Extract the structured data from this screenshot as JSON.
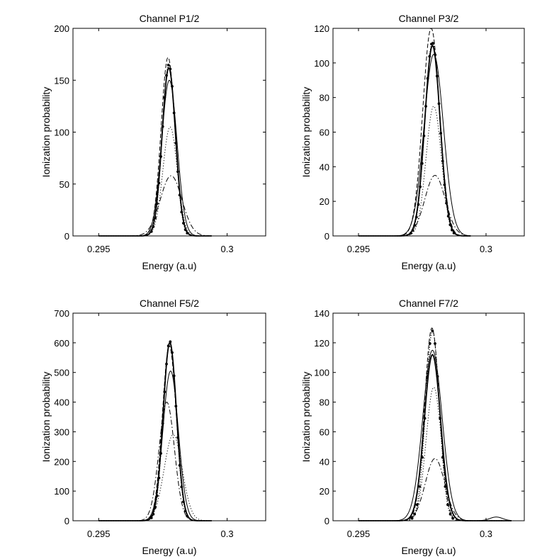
{
  "figure": {
    "background": "#ffffff",
    "line_color": "#000000"
  },
  "chart_data": [
    {
      "type": "line",
      "title": "Channel P1/2",
      "xlabel": "Energy (a.u)",
      "ylabel": "Ionization probability",
      "xlim": [
        0.294,
        0.3015
      ],
      "ylim": [
        0,
        200
      ],
      "xticks": [
        0.295,
        0.3
      ],
      "xtick_labels": [
        "0.295",
        "0.3"
      ],
      "yticks": [
        0,
        50,
        100,
        150,
        200
      ],
      "ytick_labels": [
        "0",
        "50",
        "100",
        "150",
        "200"
      ],
      "support": [
        0.295,
        0.2994
      ],
      "series": [
        {
          "name": "solid",
          "style": "solid",
          "peak": 150,
          "center": 0.29775,
          "sigma": 0.0003
        },
        {
          "name": "solid-thick",
          "style": "solid-thick",
          "peak": 162,
          "center": 0.29773,
          "sigma": 0.00026
        },
        {
          "name": "dotted-markers",
          "style": "dotted-markers",
          "peak": 165,
          "center": 0.29773,
          "sigma": 0.00025
        },
        {
          "name": "dotted",
          "style": "dotted",
          "peak": 105,
          "center": 0.29778,
          "sigma": 0.00028
        },
        {
          "name": "dashdot",
          "style": "dashdot",
          "peak": 58,
          "center": 0.29782,
          "sigma": 0.00042
        },
        {
          "name": "dashed",
          "style": "dashed",
          "peak": 172,
          "center": 0.2977,
          "sigma": 0.00027
        }
      ]
    },
    {
      "type": "line",
      "title": "Channel P3/2",
      "xlabel": "Energy (a.u)",
      "ylabel": "Ionization probability",
      "xlim": [
        0.294,
        0.3015
      ],
      "ylim": [
        0,
        120
      ],
      "xticks": [
        0.295,
        0.3
      ],
      "xtick_labels": [
        "0.295",
        "0.3"
      ],
      "yticks": [
        0,
        20,
        40,
        60,
        80,
        100,
        120
      ],
      "ytick_labels": [
        "0",
        "20",
        "40",
        "60",
        "80",
        "100",
        "120"
      ],
      "support": [
        0.295,
        0.2994
      ],
      "series": [
        {
          "name": "solid",
          "style": "solid",
          "peak": 105,
          "center": 0.29795,
          "sigma": 0.00038
        },
        {
          "name": "solid-thick",
          "style": "solid-thick",
          "peak": 110,
          "center": 0.2979,
          "sigma": 0.0003
        },
        {
          "name": "dotted-markers",
          "style": "dotted-markers",
          "peak": 112,
          "center": 0.2979,
          "sigma": 0.00029
        },
        {
          "name": "dotted",
          "style": "dotted",
          "peak": 75,
          "center": 0.29795,
          "sigma": 0.0003
        },
        {
          "name": "dashdot",
          "style": "dashdot",
          "peak": 35,
          "center": 0.298,
          "sigma": 0.0004
        },
        {
          "name": "dashed",
          "style": "dashed",
          "peak": 120,
          "center": 0.29785,
          "sigma": 0.00033
        }
      ]
    },
    {
      "type": "line",
      "title": "Channel F5/2",
      "xlabel": "Energy (a.u)",
      "ylabel": "Ionization probability",
      "xlim": [
        0.294,
        0.3015
      ],
      "ylim": [
        0,
        700
      ],
      "xticks": [
        0.295,
        0.3
      ],
      "xtick_labels": [
        "0.295",
        "0.3"
      ],
      "yticks": [
        0,
        100,
        200,
        300,
        400,
        500,
        600,
        700
      ],
      "ytick_labels": [
        "0",
        "100",
        "200",
        "300",
        "400",
        "500",
        "600",
        "700"
      ],
      "support": [
        0.295,
        0.2994
      ],
      "series": [
        {
          "name": "solid",
          "style": "solid",
          "peak": 505,
          "center": 0.2978,
          "sigma": 0.0003
        },
        {
          "name": "solid-thick",
          "style": "solid-thick",
          "peak": 600,
          "center": 0.29777,
          "sigma": 0.00026
        },
        {
          "name": "dotted-markers",
          "style": "dotted-markers",
          "peak": 605,
          "center": 0.29777,
          "sigma": 0.00025
        },
        {
          "name": "dotted",
          "style": "dotted",
          "peak": 290,
          "center": 0.2979,
          "sigma": 0.00035
        },
        {
          "name": "dashdot",
          "style": "dashdot",
          "peak": 400,
          "center": 0.29765,
          "sigma": 0.0003
        },
        {
          "name": "dashed",
          "style": "dashed",
          "peak": 590,
          "center": 0.29775,
          "sigma": 0.00027
        }
      ]
    },
    {
      "type": "line",
      "title": "Channel F7/2",
      "xlabel": "Energy (a.u)",
      "ylabel": "Ionization probability",
      "xlim": [
        0.294,
        0.3015
      ],
      "ylim": [
        0,
        140
      ],
      "xticks": [
        0.295,
        0.3
      ],
      "xtick_labels": [
        "0.295",
        "0.3"
      ],
      "yticks": [
        0,
        20,
        40,
        60,
        80,
        100,
        120,
        140
      ],
      "ytick_labels": [
        "0",
        "20",
        "40",
        "60",
        "80",
        "100",
        "120",
        "140"
      ],
      "support": [
        0.295,
        0.301
      ],
      "series": [
        {
          "name": "solid",
          "style": "solid",
          "peak": 115,
          "center": 0.2979,
          "sigma": 0.00038,
          "bump": {
            "peak": 2.5,
            "center": 0.3004,
            "sigma": 0.00025
          }
        },
        {
          "name": "solid-thick",
          "style": "solid-thick",
          "peak": 112,
          "center": 0.2979,
          "sigma": 0.00032
        },
        {
          "name": "dotted-markers",
          "style": "dotted-markers",
          "peak": 128,
          "center": 0.2979,
          "sigma": 0.00027
        },
        {
          "name": "dotted",
          "style": "dotted",
          "peak": 90,
          "center": 0.29795,
          "sigma": 0.0003
        },
        {
          "name": "dashdot",
          "style": "dashdot",
          "peak": 42,
          "center": 0.298,
          "sigma": 0.00038
        },
        {
          "name": "dashed",
          "style": "dashed",
          "peak": 130,
          "center": 0.29788,
          "sigma": 0.00029
        }
      ]
    }
  ]
}
